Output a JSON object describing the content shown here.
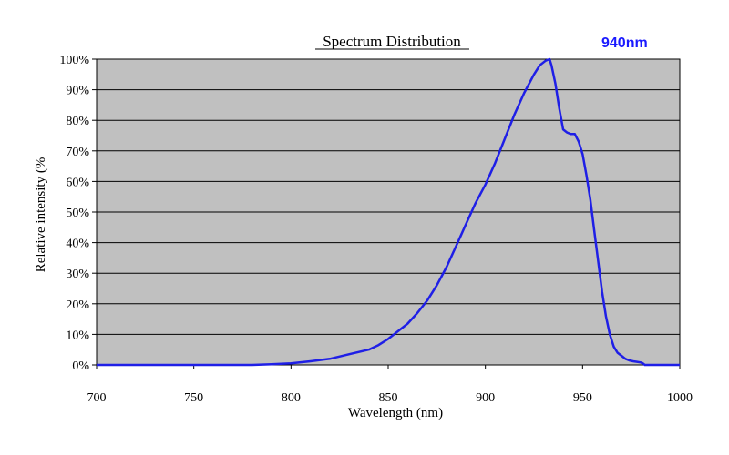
{
  "chart_data": {
    "type": "line",
    "title": "Spectrum Distribution",
    "badge": "940nm",
    "xlabel": "Wavelength (nm)",
    "ylabel": "Relative intensity (%",
    "xlim": [
      700,
      1000
    ],
    "ylim": [
      0,
      100
    ],
    "x_ticks": [
      "700",
      "750",
      "800",
      "850",
      "900",
      "950",
      "1000"
    ],
    "y_ticks": [
      "0%",
      "10%",
      "20%",
      "30%",
      "40%",
      "50%",
      "60%",
      "70%",
      "80%",
      "90%",
      "100%"
    ],
    "grid": "horizontal",
    "colors": {
      "plot_background": "#c0c0c0",
      "line": "#1f1fe6",
      "badge": "#1a1aff"
    },
    "series": [
      {
        "x": [
          700,
          780,
          790,
          800,
          810,
          820,
          830,
          840,
          845,
          850,
          855,
          860,
          865,
          870,
          875,
          880,
          885,
          890,
          895,
          900,
          905,
          910,
          915,
          920,
          925,
          928,
          931,
          933,
          934,
          936,
          938,
          940,
          942,
          944,
          946,
          948,
          950,
          952,
          954,
          956,
          958,
          960,
          962,
          964,
          966,
          968,
          970,
          972,
          974,
          976,
          978,
          980,
          981,
          982,
          990,
          1000
        ],
        "y": [
          0,
          0,
          0.2,
          0.5,
          1.2,
          2,
          3.5,
          5,
          6.5,
          8.5,
          11,
          13.5,
          17,
          21,
          26,
          32,
          39,
          46,
          53,
          59,
          66,
          74,
          82,
          89,
          95,
          98,
          99.5,
          100,
          98,
          92,
          84,
          77,
          76,
          75.5,
          75.5,
          73,
          69,
          62,
          54,
          44,
          34,
          24,
          16,
          10,
          6,
          4,
          3,
          2,
          1.5,
          1.2,
          1,
          0.8,
          0.5,
          0,
          0,
          0
        ]
      }
    ]
  }
}
